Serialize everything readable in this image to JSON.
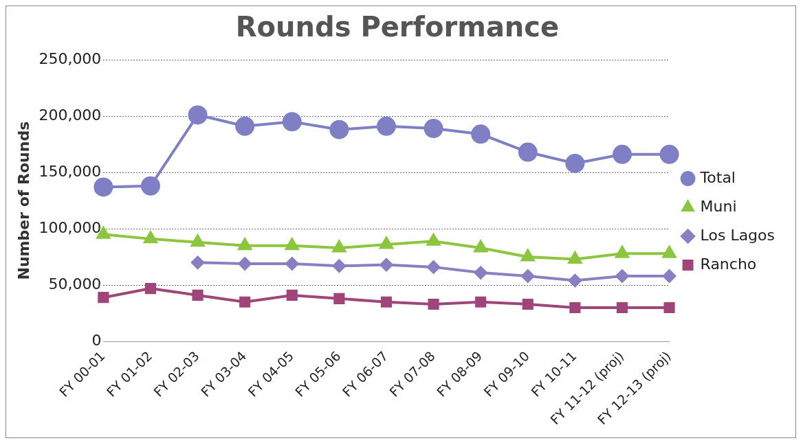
{
  "chart_data": {
    "type": "line",
    "title": "Rounds Performance",
    "ylabel": "Number of Rounds",
    "categories": [
      "FY 00-01",
      "FY 01-02",
      "FY 02-03",
      "FY 03-04",
      "FY 04-05",
      "FY 05-06",
      "FY 06-07",
      "FY 07-08",
      "FY 08-09",
      "FY 09-10",
      "FY 10-11",
      "FY 11-12 (proj)",
      "FY 12-13 (proj)"
    ],
    "series": [
      {
        "name": "Total",
        "color": "#7f7fc6",
        "marker": "circle",
        "values": [
          137000,
          138000,
          201000,
          191000,
          195000,
          188000,
          191000,
          189000,
          184000,
          168000,
          158000,
          166000,
          166000
        ]
      },
      {
        "name": "Muni",
        "color": "#8cc63f",
        "marker": "triangle",
        "values": [
          95000,
          91000,
          88000,
          85000,
          85000,
          83000,
          86000,
          89000,
          83000,
          75000,
          73000,
          78000,
          78000
        ]
      },
      {
        "name": "Los Lagos",
        "color": "#8a7fc2",
        "marker": "diamond",
        "values": [
          null,
          null,
          70000,
          69000,
          69000,
          67000,
          68000,
          66000,
          61000,
          58000,
          54000,
          58000,
          58000
        ]
      },
      {
        "name": "Rancho",
        "color": "#a0457a",
        "marker": "square",
        "values": [
          39000,
          47000,
          41000,
          35000,
          41000,
          38000,
          35000,
          33000,
          35000,
          33000,
          30000,
          30000,
          30000
        ]
      }
    ],
    "ylim": [
      0,
      250000
    ],
    "yticks": [
      0,
      {
        "value": 50000,
        "label": "50,000"
      },
      {
        "value": 100000,
        "label": "100,000"
      },
      {
        "value": 150000,
        "label": "150,000"
      },
      {
        "value": 200000,
        "label": "200,000"
      },
      {
        "value": 250000,
        "label": "250,000"
      }
    ],
    "grid": "y",
    "legend": "right"
  }
}
